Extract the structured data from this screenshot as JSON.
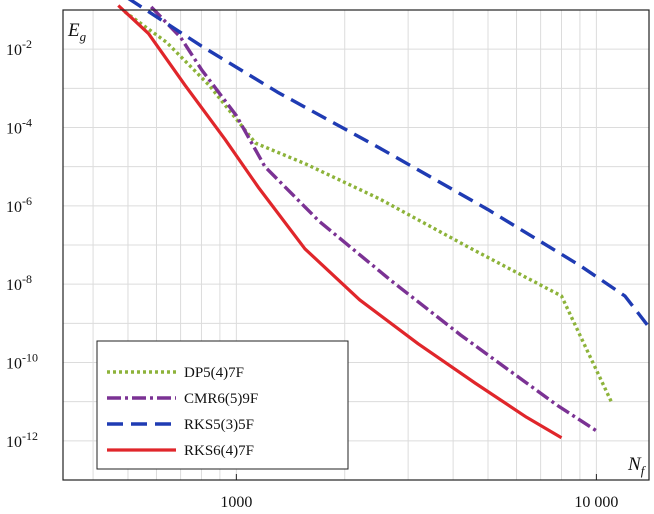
{
  "chart_data": {
    "type": "line",
    "title": "",
    "xlabel": "N",
    "xlabel_sub": "f",
    "ylabel": "E",
    "ylabel_sub": "g",
    "xscale": "log",
    "yscale": "log",
    "xlim": [
      330,
      14000
    ],
    "ylim": [
      1e-13,
      0.1
    ],
    "grid": true,
    "legend_position": "bottom-left",
    "x_ticks": [
      {
        "value": 1000,
        "label": "1000"
      },
      {
        "value": 10000,
        "label": "10 000"
      }
    ],
    "y_ticks": [
      {
        "value": 0.01,
        "label": "10",
        "sup": "-2"
      },
      {
        "value": 0.0001,
        "label": "10",
        "sup": "-4"
      },
      {
        "value": 1e-06,
        "label": "10",
        "sup": "-6"
      },
      {
        "value": 1e-08,
        "label": "10",
        "sup": "-8"
      },
      {
        "value": 1e-10,
        "label": "10",
        "sup": "-10"
      },
      {
        "value": 1e-12,
        "label": "10",
        "sup": "-12"
      }
    ],
    "series": [
      {
        "name": "DP5(4)7F",
        "color": "#8db33a",
        "style": "dotted",
        "points": [
          [
            490,
            0.09
          ],
          [
            640,
            0.015
          ],
          [
            840,
            0.0012
          ],
          [
            1130,
            4e-05
          ],
          [
            1550,
            1.2e-05
          ],
          [
            2500,
            1.5e-06
          ],
          [
            4500,
            8e-08
          ],
          [
            8000,
            5e-09
          ],
          [
            11000,
            1e-11
          ]
        ]
      },
      {
        "name": "CMR6(5)9F",
        "color": "#7b3294",
        "style": "dashdot",
        "points": [
          [
            580,
            0.12
          ],
          [
            700,
            0.02
          ],
          [
            800,
            0.003
          ],
          [
            1000,
            0.0002
          ],
          [
            1200,
            1e-05
          ],
          [
            1700,
            4e-07
          ],
          [
            2700,
            1.2e-08
          ],
          [
            4200,
            5e-10
          ],
          [
            7800,
            8e-12
          ],
          [
            10000,
            1.8e-12
          ]
        ]
      },
      {
        "name": "RKS5(3)5F",
        "color": "#1f3bb3",
        "style": "dashed",
        "points": [
          [
            500,
            0.2
          ],
          [
            800,
            0.012
          ],
          [
            1300,
            0.0008
          ],
          [
            2500,
            3e-05
          ],
          [
            5000,
            8e-07
          ],
          [
            9000,
            3e-08
          ],
          [
            12000,
            5e-09
          ],
          [
            14000,
            8e-10
          ]
        ]
      },
      {
        "name": "RKS6(4)7F",
        "color": "#e0262b",
        "style": "solid",
        "points": [
          [
            470,
            0.13
          ],
          [
            570,
            0.025
          ],
          [
            720,
            0.0012
          ],
          [
            930,
            5e-05
          ],
          [
            1150,
            3e-06
          ],
          [
            1550,
            8e-08
          ],
          [
            2200,
            4e-09
          ],
          [
            3200,
            3e-10
          ],
          [
            4600,
            3e-11
          ],
          [
            6400,
            4e-12
          ],
          [
            8000,
            1.2e-12
          ]
        ]
      }
    ]
  }
}
